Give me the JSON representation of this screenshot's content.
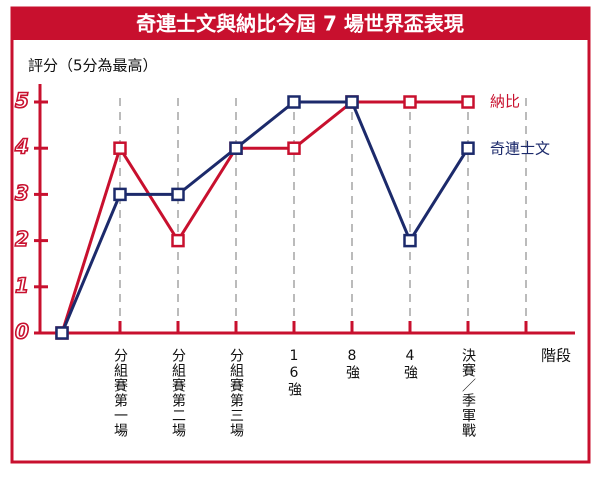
{
  "chart_data": {
    "type": "line",
    "title": "奇連士文與納比今屆 7 場世界盃表現",
    "y_label": "評分（5分為最高）",
    "x_label": "階段",
    "categories": [
      null,
      "分組賽第一場",
      "分組賽第二場",
      "分組賽第三場",
      "16強",
      "8強",
      "4強",
      "決賽／季軍戰",
      null
    ],
    "series": [
      {
        "name": "納比",
        "color": "#c8102e",
        "values": [
          0,
          4,
          2,
          4,
          4,
          5,
          5,
          5,
          null
        ]
      },
      {
        "name": "奇連士文",
        "color": "#1c2a6b",
        "values": [
          0,
          3,
          3,
          4,
          5,
          5,
          2,
          4,
          null
        ]
      }
    ],
    "ylim": [
      0,
      5
    ],
    "yticks": [
      0,
      1,
      2,
      3,
      4,
      5
    ],
    "grid": true,
    "axis_color": "#c8102e"
  }
}
